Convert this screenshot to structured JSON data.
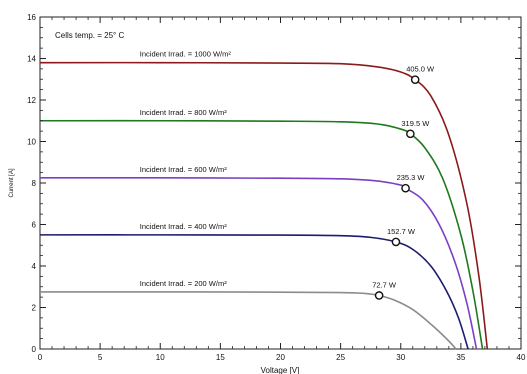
{
  "chart_data": {
    "type": "line",
    "title": "",
    "xlabel": "Voltage  [V]",
    "ylabel": "Current    [A]",
    "xlim": [
      0,
      40
    ],
    "ylim": [
      0,
      16
    ],
    "xticks": [
      0,
      5,
      10,
      15,
      20,
      25,
      30,
      35,
      40
    ],
    "yticks": [
      0,
      2,
      4,
      6,
      8,
      10,
      12,
      14,
      16
    ],
    "grid": false,
    "annotation": "Cells temp. = 25° C",
    "series": [
      {
        "name": "Incident Irrad. = 1000 W/m²",
        "color": "#8b1a1a",
        "x": [
          0,
          10,
          20,
          25,
          28,
          30,
          31.2,
          32.5,
          34,
          35.5,
          36.5,
          37.2
        ],
        "y": [
          13.8,
          13.8,
          13.78,
          13.75,
          13.6,
          13.35,
          12.98,
          12.2,
          10.3,
          7.0,
          3.5,
          0
        ],
        "mpp": {
          "x": 31.2,
          "y": 12.98,
          "label": "405.0 W"
        }
      },
      {
        "name": "Incident Irrad. = 800 W/m²",
        "color": "#1f7a1f",
        "x": [
          0,
          10,
          20,
          25,
          28,
          30,
          30.8,
          32,
          33.5,
          35,
          36,
          36.8
        ],
        "y": [
          11.0,
          11.0,
          10.98,
          10.95,
          10.85,
          10.6,
          10.37,
          9.7,
          8.2,
          5.5,
          2.8,
          0
        ],
        "mpp": {
          "x": 30.8,
          "y": 10.37,
          "label": "319.5 W"
        }
      },
      {
        "name": "Incident Irrad. = 600 W/m²",
        "color": "#7b3fc4",
        "x": [
          0,
          10,
          20,
          25,
          28,
          30,
          30.4,
          31.8,
          33.2,
          34.5,
          35.5,
          36.3
        ],
        "y": [
          8.25,
          8.25,
          8.23,
          8.2,
          8.1,
          7.9,
          7.75,
          7.2,
          6.0,
          4.2,
          2.2,
          0
        ],
        "mpp": {
          "x": 30.4,
          "y": 7.75,
          "label": "235.3 W"
        }
      },
      {
        "name": "Incident Irrad. = 400 W/m²",
        "color": "#1c1c6e",
        "x": [
          0,
          10,
          20,
          25,
          27.5,
          29.6,
          31,
          32.5,
          33.8,
          34.8,
          35.6
        ],
        "y": [
          5.5,
          5.5,
          5.49,
          5.46,
          5.38,
          5.16,
          4.8,
          4.0,
          2.8,
          1.5,
          0
        ],
        "mpp": {
          "x": 29.6,
          "y": 5.16,
          "label": "152.7 W"
        }
      },
      {
        "name": "Incident Irrad. = 200 W/m²",
        "color": "#8c8c8c",
        "x": [
          0,
          10,
          20,
          25,
          27,
          28.2,
          29.5,
          31,
          32.5,
          33.8,
          34.6
        ],
        "y": [
          2.75,
          2.75,
          2.74,
          2.72,
          2.68,
          2.58,
          2.35,
          1.9,
          1.2,
          0.5,
          0
        ],
        "mpp": {
          "x": 28.2,
          "y": 2.58,
          "label": "72.7 W"
        }
      }
    ]
  }
}
